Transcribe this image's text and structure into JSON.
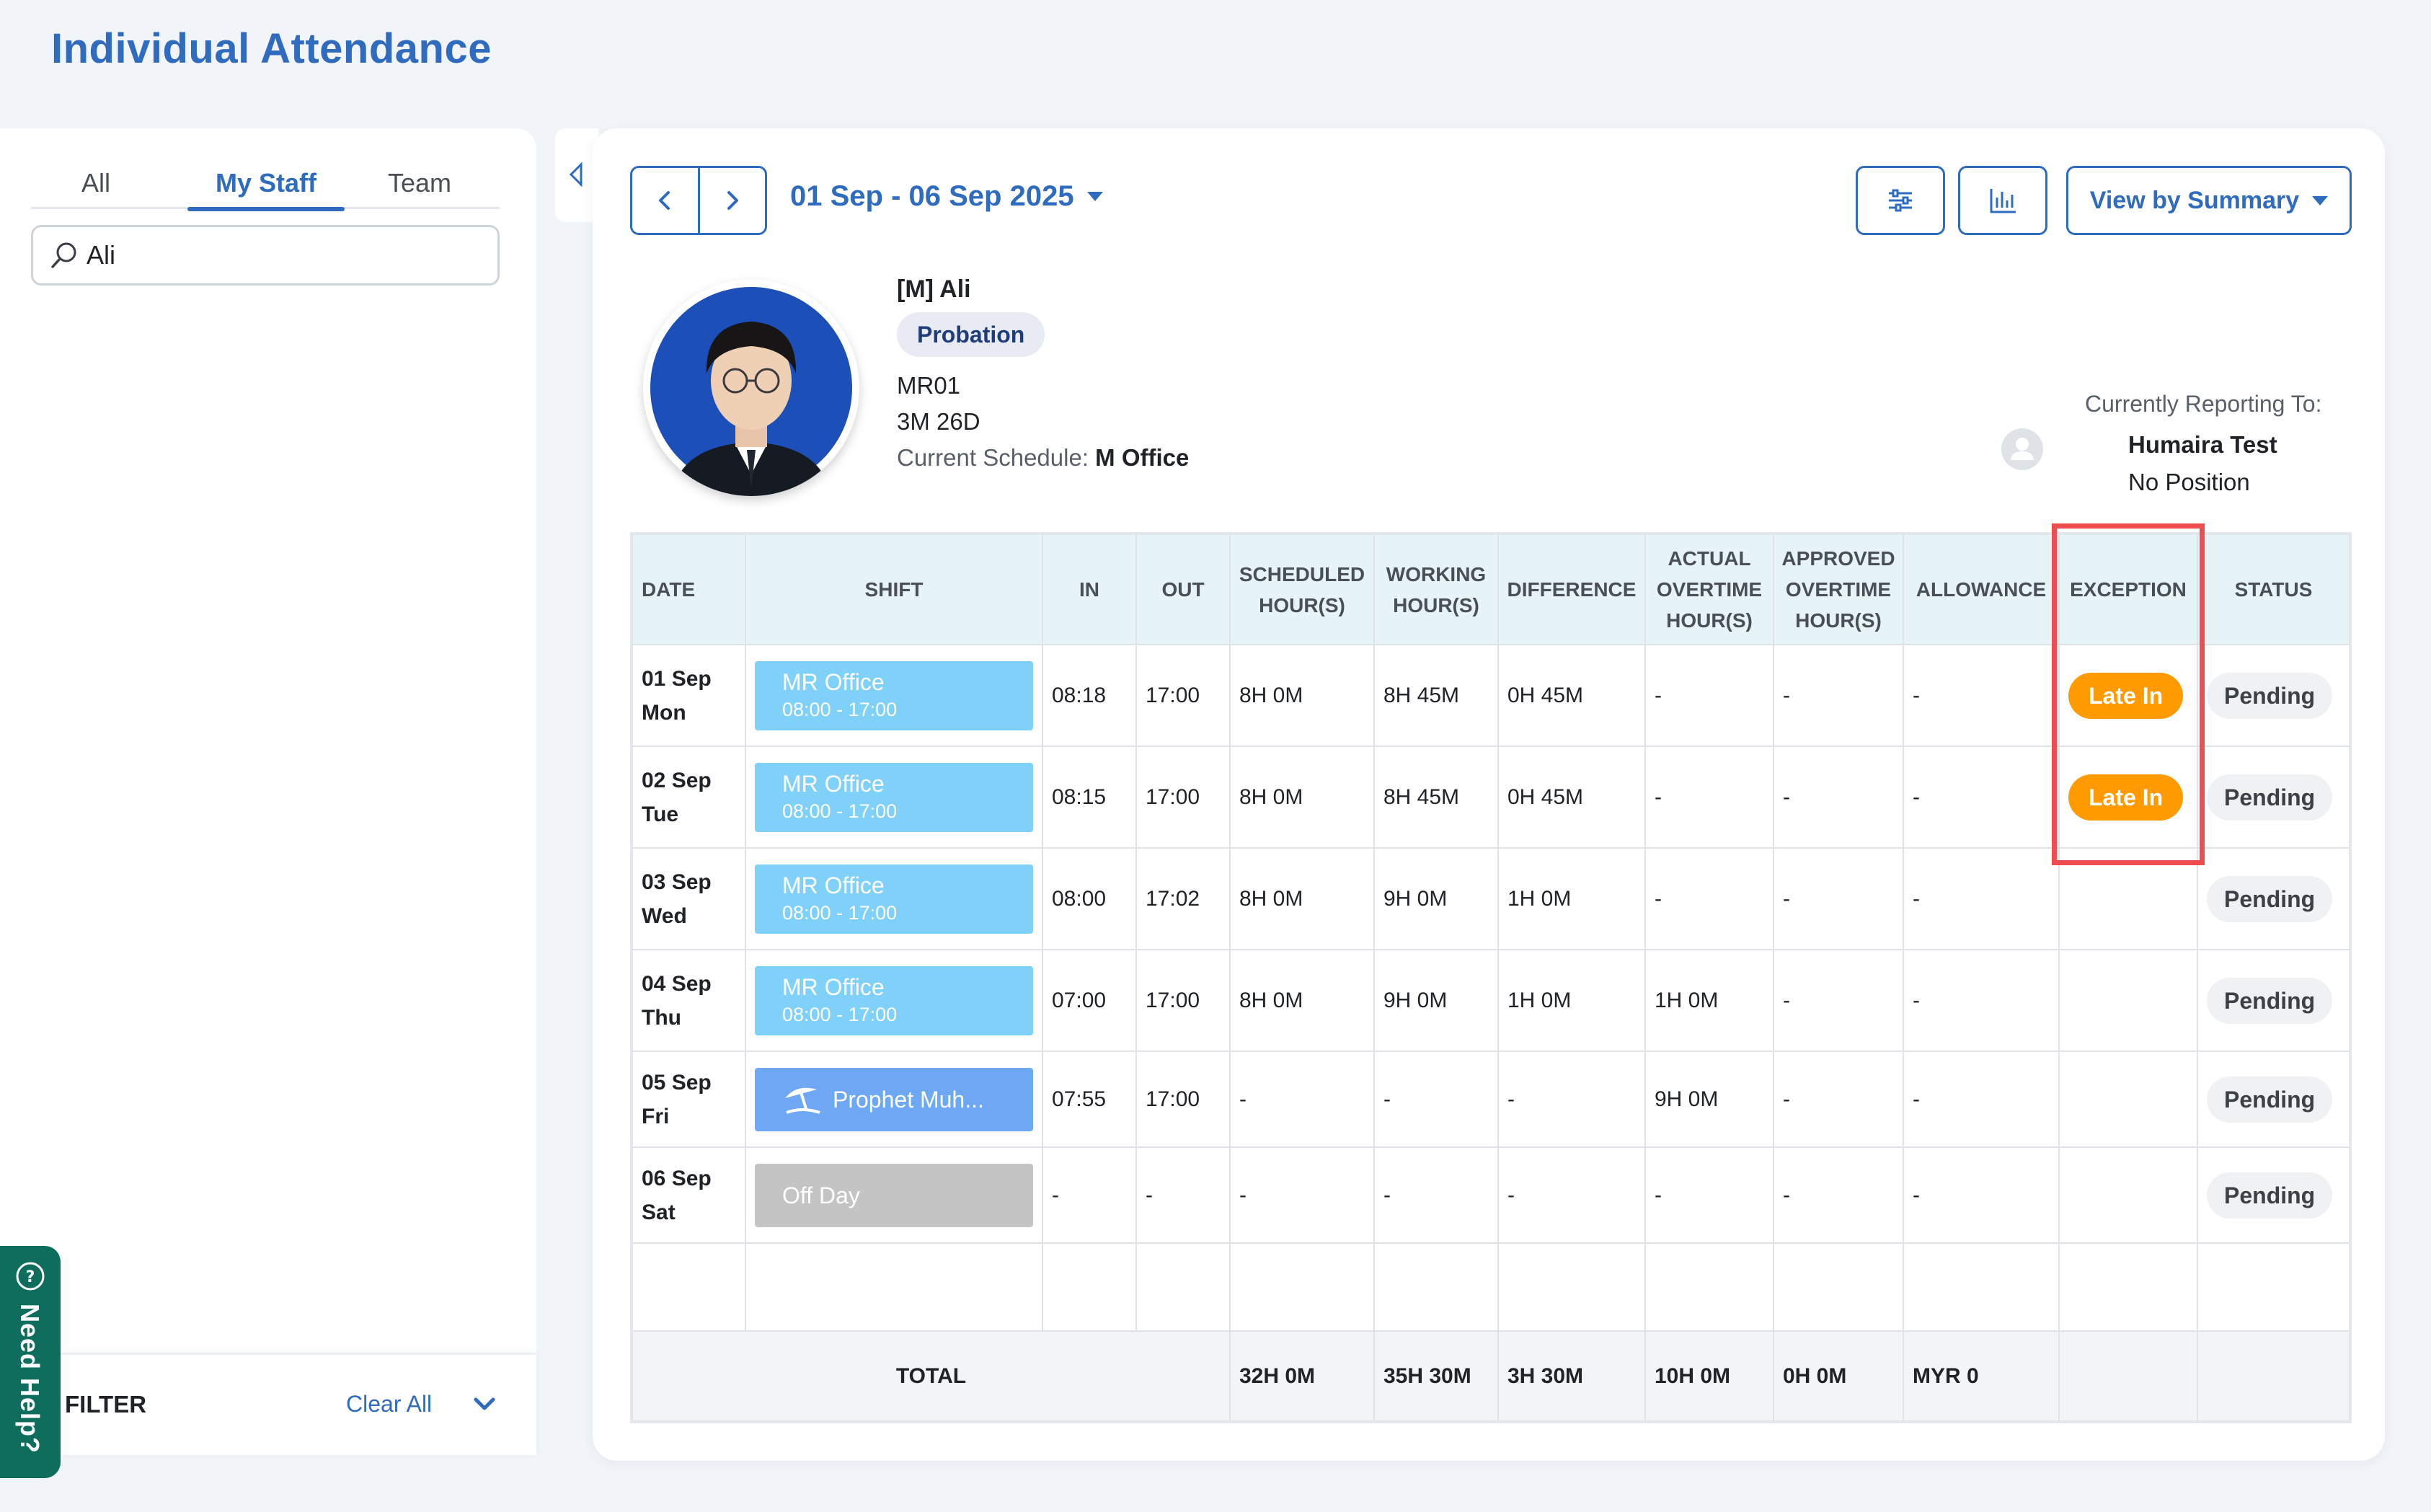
{
  "page": {
    "title": "Individual Attendance"
  },
  "sidebar": {
    "tabs": [
      {
        "label": "All",
        "active": false
      },
      {
        "label": "My Staff",
        "active": true
      },
      {
        "label": "Team",
        "active": false
      }
    ],
    "search": {
      "value": "Ali",
      "icon": "search-icon"
    },
    "filter": {
      "label": "FILTER",
      "clear_label": "Clear All",
      "icon": "chevron-down-icon"
    }
  },
  "help": {
    "label": "Need Help?",
    "icon": "question-icon"
  },
  "toolbar": {
    "date_range": "01 Sep - 06 Sep 2025",
    "prev_icon": "chevron-left-icon",
    "next_icon": "chevron-right-icon",
    "filter_icon": "sliders-icon",
    "chart_icon": "bar-chart-icon",
    "view_label": "View by Summary"
  },
  "employee": {
    "name": "[M] Ali",
    "status_badge": "Probation",
    "code": "MR01",
    "tenure": "3M 26D",
    "schedule_label": "Current Schedule:",
    "schedule_value": "M Office",
    "reporting_label": "Currently Reporting To:",
    "manager_name": "Humaira Test",
    "manager_position": "No Position"
  },
  "table": {
    "headers": {
      "date": "DATE",
      "shift": "SHIFT",
      "in": "IN",
      "out": "OUT",
      "scheduled_1": "SCHEDULED",
      "scheduled_2": "HOUR(S)",
      "working_1": "WORKING",
      "working_2": "HOUR(S)",
      "difference": "DIFFERENCE",
      "actual_1": "ACTUAL",
      "actual_2": "OVERTIME",
      "actual_3": "HOUR(S)",
      "approved_1": "APPROVED",
      "approved_2": "OVERTIME",
      "approved_3": "HOUR(S)",
      "allowance": "ALLOWANCE",
      "exception": "EXCEPTION",
      "status": "STATUS"
    },
    "rows": [
      {
        "date": "01 Sep",
        "day": "Mon",
        "shift_name": "MR Office",
        "shift_time": "08:00 - 17:00",
        "in": "08:18",
        "out": "17:00",
        "scheduled": "8H 0M",
        "working": "8H 45M",
        "difference": "0H 45M",
        "actual_ot": "-",
        "approved_ot": "-",
        "allowance": "-",
        "exception": "Late In",
        "status": "Pending"
      },
      {
        "date": "02 Sep",
        "day": "Tue",
        "shift_name": "MR Office",
        "shift_time": "08:00 - 17:00",
        "in": "08:15",
        "out": "17:00",
        "scheduled": "8H 0M",
        "working": "8H 45M",
        "difference": "0H 45M",
        "actual_ot": "-",
        "approved_ot": "-",
        "allowance": "-",
        "exception": "Late In",
        "status": "Pending"
      },
      {
        "date": "03 Sep",
        "day": "Wed",
        "shift_name": "MR Office",
        "shift_time": "08:00 - 17:00",
        "in": "08:00",
        "out": "17:02",
        "scheduled": "8H 0M",
        "working": "9H 0M",
        "difference": "1H 0M",
        "actual_ot": "-",
        "approved_ot": "-",
        "allowance": "-",
        "exception": "",
        "status": "Pending"
      },
      {
        "date": "04 Sep",
        "day": "Thu",
        "shift_name": "MR Office",
        "shift_time": "08:00 - 17:00",
        "in": "07:00",
        "out": "17:00",
        "scheduled": "8H 0M",
        "working": "9H 0M",
        "difference": "1H 0M",
        "actual_ot": "1H 0M",
        "approved_ot": "-",
        "allowance": "-",
        "exception": "",
        "status": "Pending"
      },
      {
        "date": "05 Sep",
        "day": "Fri",
        "shift_name": "Prophet Muh...",
        "shift_icon": "beach-umbrella-icon",
        "in": "07:55",
        "out": "17:00",
        "scheduled": "-",
        "working": "-",
        "difference": "-",
        "actual_ot": "9H 0M",
        "approved_ot": "-",
        "allowance": "-",
        "exception": "",
        "status": "Pending"
      },
      {
        "date": "06 Sep",
        "day": "Sat",
        "shift_name": "Off Day",
        "in": "-",
        "out": "-",
        "scheduled": "-",
        "working": "-",
        "difference": "-",
        "actual_ot": "-",
        "approved_ot": "-",
        "allowance": "-",
        "exception": "",
        "status": "Pending"
      }
    ],
    "total": {
      "label": "TOTAL",
      "scheduled": "32H 0M",
      "working": "35H 30M",
      "difference": "3H 30M",
      "actual_ot": "10H 0M",
      "approved_ot": "0H 0M",
      "allowance": "MYR 0"
    }
  },
  "colors": {
    "accent": "#2f6cc0",
    "shift": "#7fd1fa",
    "holiday": "#6ea8f5",
    "off_day": "#c4c4c4",
    "late_in": "#ff9a00",
    "highlight": "#ef4c50",
    "help": "#0f6d5e"
  }
}
